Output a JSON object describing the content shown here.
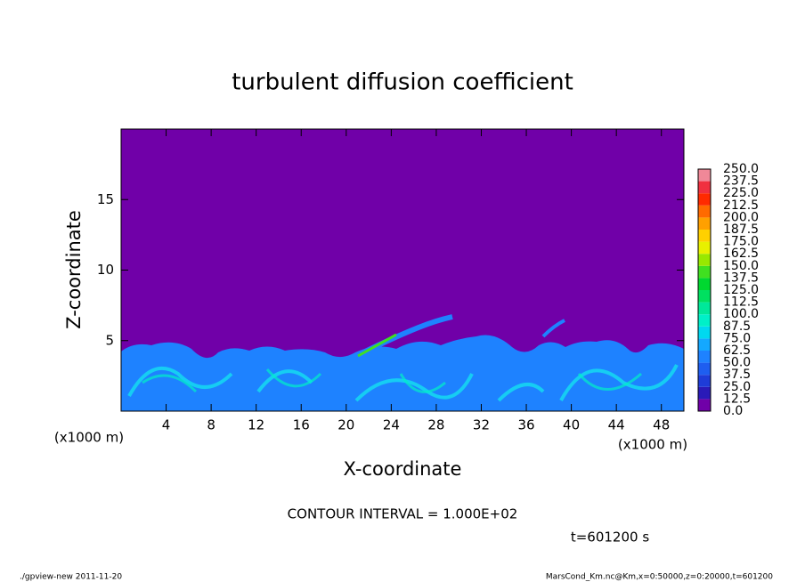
{
  "chart_data": {
    "type": "contour",
    "title": "turbulent diffusion coefficient",
    "xlabel": "X-coordinate",
    "ylabel": "Z-coordinate",
    "x_unit": "(x1000 m)",
    "xlim": [
      0,
      50
    ],
    "xticks": [
      4,
      8,
      12,
      16,
      20,
      24,
      28,
      32,
      36,
      40,
      44,
      48
    ],
    "ylim": [
      0,
      20
    ],
    "yticks": [
      5,
      10,
      15
    ],
    "levels": [
      {
        "value": 0,
        "label": "0.0"
      },
      {
        "value": 12.5,
        "label": "12.5"
      },
      {
        "value": 25,
        "label": "25.0"
      },
      {
        "value": 37.5,
        "label": "37.5"
      },
      {
        "value": 50,
        "label": "50.0"
      },
      {
        "value": 62.5,
        "label": "62.5"
      },
      {
        "value": 75,
        "label": "75.0"
      },
      {
        "value": 87.5,
        "label": "87.5"
      },
      {
        "value": 100,
        "label": "100.0"
      },
      {
        "value": 112.5,
        "label": "112.5"
      },
      {
        "value": 125,
        "label": "125.0"
      },
      {
        "value": 137.5,
        "label": "137.5"
      },
      {
        "value": 150,
        "label": "150.0"
      },
      {
        "value": 162.5,
        "label": "162.5"
      },
      {
        "value": 175,
        "label": "175.0"
      },
      {
        "value": 187.5,
        "label": "187.5"
      },
      {
        "value": 200,
        "label": "200.0"
      },
      {
        "value": 212.5,
        "label": "212.5"
      },
      {
        "value": 225,
        "label": "225.0"
      },
      {
        "value": 237.5,
        "label": "237.5"
      },
      {
        "value": 250,
        "label": "250.0"
      }
    ],
    "level_colors": [
      "#7000a8",
      "#2a1ab8",
      "#1e3cd8",
      "#1e5ef0",
      "#1e82ff",
      "#14a8ff",
      "#00d8f0",
      "#00f0c8",
      "#00e89a",
      "#00e060",
      "#00d830",
      "#40e020",
      "#98e800",
      "#e8f000",
      "#ffd000",
      "#ffa000",
      "#ff6a00",
      "#ff2a00",
      "#f03040",
      "#f08898"
    ],
    "contour_interval": "CONTOUR INTERVAL = 1.000E+02",
    "time_label": "t=601200 s",
    "footer_left": "./gpview-new  2011-11-20",
    "footer_right": "MarsCond_Km.nc@Km,x=0:50000,z=0:20000,t=601200"
  }
}
